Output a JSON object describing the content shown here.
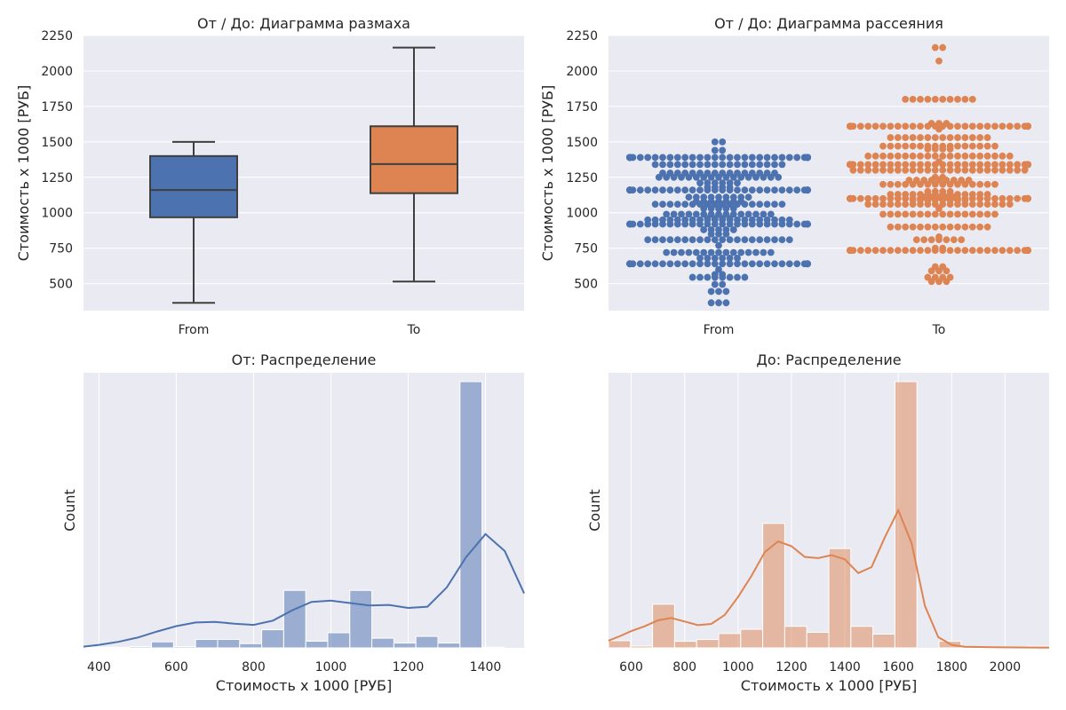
{
  "colors": {
    "from": "#4c72b0",
    "to": "#dd8452",
    "background": "#eaeaf2",
    "grid": "#ffffff"
  },
  "chart_data": [
    {
      "type": "box",
      "title": "От / До: Диаграмма размаха",
      "xlabel": "",
      "ylabel": "Стоимость х 1000 [РУБ]",
      "categories": [
        "From",
        "To"
      ],
      "ylim": [
        310,
        2250
      ],
      "yticks": [
        500,
        750,
        1000,
        1250,
        1500,
        1750,
        2000,
        2250
      ],
      "grid": true,
      "series": [
        {
          "category": "From",
          "color": "#4c72b0",
          "min": 365,
          "q1": 968,
          "median": 1160,
          "q3": 1400,
          "max": 1500
        },
        {
          "category": "To",
          "color": "#dd8452",
          "min": 515,
          "q1": 1138,
          "median": 1343,
          "q3": 1610,
          "max": 2165
        }
      ]
    },
    {
      "type": "scatter",
      "subtype": "swarm",
      "title": "От / До: Диаграмма рассеяния",
      "xlabel": "",
      "ylabel": "Стоимость х 1000 [РУБ]",
      "categories": [
        "From",
        "To"
      ],
      "ylim": [
        310,
        2250
      ],
      "yticks": [
        500,
        750,
        1000,
        1250,
        1500,
        1750,
        2000,
        2250
      ],
      "grid": true,
      "series": [
        {
          "category": "From",
          "color": "#4c72b0",
          "levels": [
            [
              365,
              3
            ],
            [
              445,
              3
            ],
            [
              495,
              2
            ],
            [
              545,
              8
            ],
            [
              565,
              2
            ],
            [
              600,
              1
            ],
            [
              640,
              38
            ],
            [
              680,
              6
            ],
            [
              720,
              15
            ],
            [
              770,
              1
            ],
            [
              810,
              20
            ],
            [
              850,
              3
            ],
            [
              880,
              5
            ],
            [
              920,
              30
            ],
            [
              950,
              20
            ],
            [
              960,
              4
            ],
            [
              990,
              15
            ],
            [
              1030,
              5
            ],
            [
              1060,
              18
            ],
            [
              1080,
              7
            ],
            [
              1110,
              9
            ],
            [
              1160,
              40
            ],
            [
              1180,
              4
            ],
            [
              1210,
              6
            ],
            [
              1250,
              17
            ],
            [
              1280,
              16
            ],
            [
              1340,
              18
            ],
            [
              1390,
              46
            ],
            [
              1440,
              2
            ],
            [
              1500,
              2
            ]
          ]
        },
        {
          "category": "To",
          "color": "#dd8452",
          "levels": [
            [
              515,
              3
            ],
            [
              545,
              4
            ],
            [
              590,
              3
            ],
            [
              620,
              2
            ],
            [
              735,
              46
            ],
            [
              750,
              2
            ],
            [
              810,
              7
            ],
            [
              830,
              1
            ],
            [
              900,
              14
            ],
            [
              990,
              16
            ],
            [
              1030,
              1
            ],
            [
              1060,
              20
            ],
            [
              1090,
              8
            ],
            [
              1100,
              46
            ],
            [
              1110,
              5
            ],
            [
              1130,
              14
            ],
            [
              1150,
              4
            ],
            [
              1200,
              16
            ],
            [
              1230,
              9
            ],
            [
              1250,
              2
            ],
            [
              1300,
              24
            ],
            [
              1340,
              50
            ],
            [
              1360,
              1
            ],
            [
              1400,
              20
            ],
            [
              1450,
              4
            ],
            [
              1470,
              16
            ],
            [
              1530,
              14
            ],
            [
              1590,
              1
            ],
            [
              1610,
              50
            ],
            [
              1630,
              3
            ],
            [
              1800,
              10
            ],
            [
              2070,
              1
            ],
            [
              2165,
              2
            ]
          ]
        }
      ]
    },
    {
      "type": "histogram",
      "title": "От: Распределение",
      "xlabel": "Стоимость х 1000 [РУБ]",
      "ylabel": "Count",
      "color": "#4c72b0",
      "xlim": [
        360,
        1500
      ],
      "xticks": [
        400,
        600,
        800,
        1000,
        1200,
        1400
      ],
      "bin_start": 365,
      "bin_width": 57,
      "counts": [
        1,
        1,
        2,
        10,
        2,
        14,
        14,
        7,
        30,
        95,
        11,
        25,
        95,
        16,
        8,
        19,
        8,
        440,
        1
      ],
      "ymax": 440,
      "kde": [
        [
          360,
          2
        ],
        [
          400,
          5
        ],
        [
          450,
          10
        ],
        [
          500,
          17
        ],
        [
          550,
          27
        ],
        [
          600,
          36
        ],
        [
          650,
          42
        ],
        [
          700,
          43
        ],
        [
          750,
          40
        ],
        [
          800,
          38
        ],
        [
          850,
          45
        ],
        [
          900,
          62
        ],
        [
          950,
          76
        ],
        [
          1000,
          78
        ],
        [
          1050,
          74
        ],
        [
          1100,
          70
        ],
        [
          1150,
          71
        ],
        [
          1200,
          66
        ],
        [
          1250,
          68
        ],
        [
          1300,
          100
        ],
        [
          1350,
          150
        ],
        [
          1400,
          188
        ],
        [
          1450,
          160
        ],
        [
          1500,
          90
        ]
      ]
    },
    {
      "type": "histogram",
      "title": "До: Распределение",
      "xlabel": "Стоимость х 1000 [РУБ]",
      "ylabel": "Count",
      "color": "#dd8452",
      "xlim": [
        515,
        2165
      ],
      "xticks": [
        600,
        800,
        1000,
        1200,
        1400,
        1600,
        1800,
        2000
      ],
      "bin_start": 515,
      "bin_width": 82.5,
      "counts": [
        12,
        3,
        73,
        11,
        14,
        24,
        31,
        208,
        36,
        26,
        166,
        36,
        23,
        445,
        0,
        11,
        0,
        0,
        0,
        3
      ],
      "ymax": 445,
      "kde": [
        [
          515,
          12
        ],
        [
          560,
          20
        ],
        [
          600,
          28
        ],
        [
          650,
          36
        ],
        [
          700,
          46
        ],
        [
          750,
          50
        ],
        [
          800,
          44
        ],
        [
          850,
          38
        ],
        [
          900,
          40
        ],
        [
          950,
          55
        ],
        [
          1000,
          85
        ],
        [
          1050,
          120
        ],
        [
          1100,
          160
        ],
        [
          1150,
          178
        ],
        [
          1200,
          170
        ],
        [
          1250,
          152
        ],
        [
          1300,
          150
        ],
        [
          1350,
          155
        ],
        [
          1400,
          148
        ],
        [
          1450,
          125
        ],
        [
          1500,
          135
        ],
        [
          1550,
          185
        ],
        [
          1600,
          230
        ],
        [
          1650,
          175
        ],
        [
          1700,
          70
        ],
        [
          1750,
          18
        ],
        [
          1800,
          5
        ],
        [
          1850,
          2
        ],
        [
          1950,
          1
        ],
        [
          2165,
          0.5
        ]
      ]
    }
  ]
}
